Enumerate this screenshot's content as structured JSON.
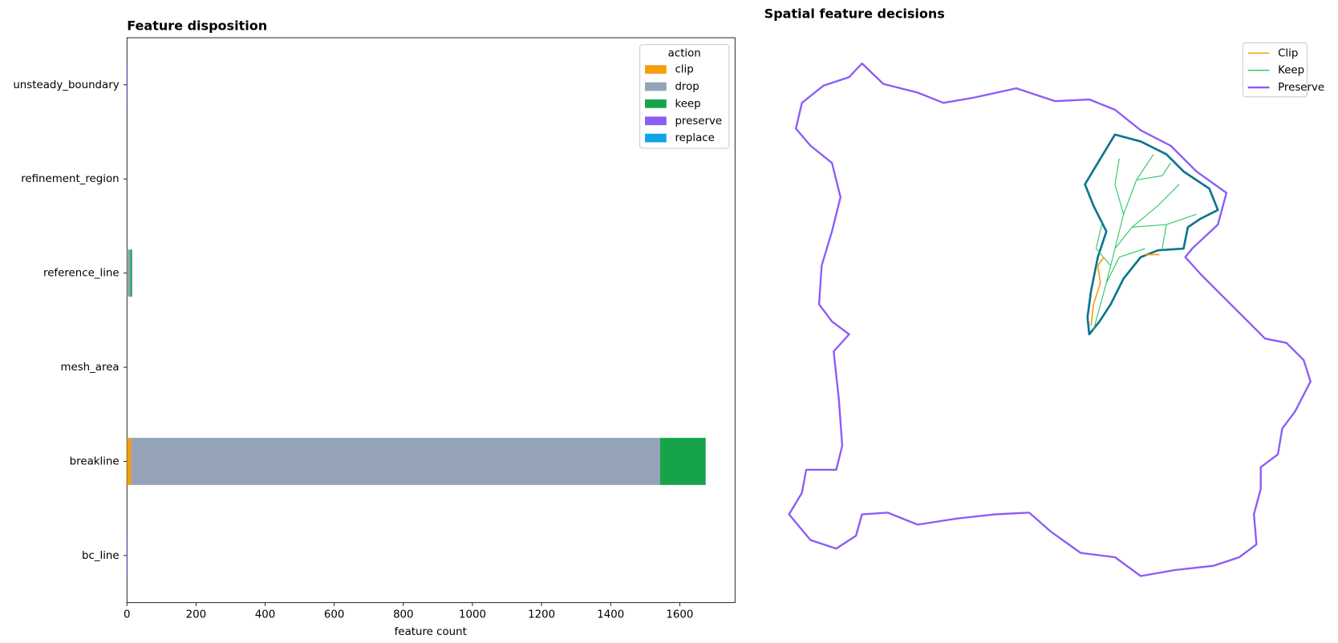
{
  "chart_data": [
    {
      "type": "barh_stacked",
      "title": "Feature disposition",
      "xlabel": "feature count",
      "categories": [
        "bc_line",
        "breakline",
        "mesh_area",
        "reference_line",
        "refinement_region",
        "unsteady_boundary"
      ],
      "series": [
        {
          "name": "clip",
          "color": "#f59e0b",
          "values": [
            0,
            12,
            0,
            0,
            0,
            0
          ]
        },
        {
          "name": "drop",
          "color": "#94a3b8",
          "values": [
            0,
            1531,
            0,
            10,
            0,
            0
          ]
        },
        {
          "name": "keep",
          "color": "#16a34a",
          "values": [
            0,
            132,
            0,
            5,
            0,
            0
          ]
        },
        {
          "name": "preserve",
          "color": "#8b5cf6",
          "values": [
            2,
            0,
            0,
            0,
            0,
            2
          ]
        },
        {
          "name": "replace",
          "color": "#0ea5e9",
          "values": [
            0,
            0,
            0,
            0,
            0,
            0
          ]
        }
      ],
      "xlim": [
        0,
        1760
      ],
      "xticks": [
        0,
        200,
        400,
        600,
        800,
        1000,
        1200,
        1400,
        1600
      ],
      "legend_title": "action",
      "legend": "upper right"
    },
    {
      "type": "map",
      "title": "Spatial feature decisions",
      "legend": "upper right",
      "series": [
        {
          "name": "Clip",
          "color": "#f59e0b"
        },
        {
          "name": "Keep",
          "color": "#22c55e"
        },
        {
          "name": "Preserve",
          "color": "#8b5cf6"
        }
      ]
    }
  ]
}
